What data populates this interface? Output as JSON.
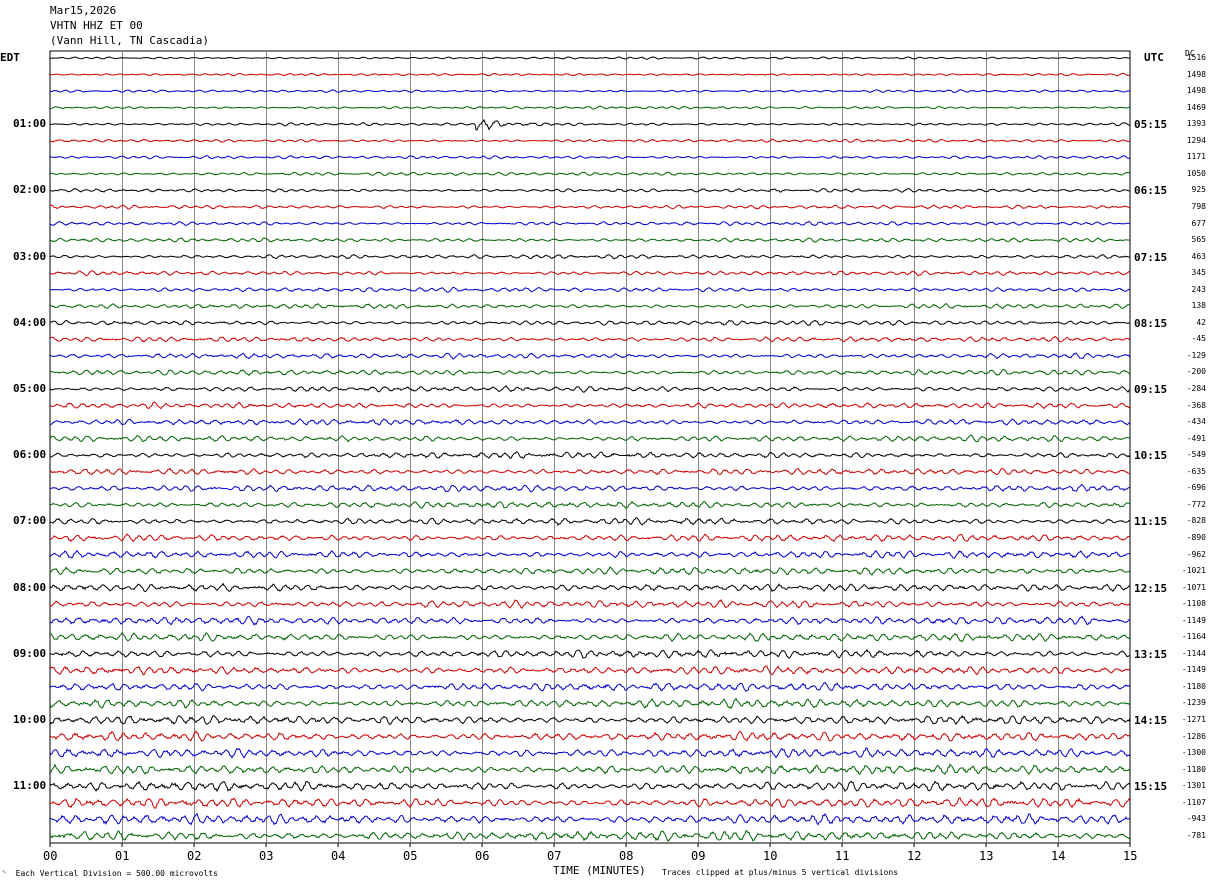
{
  "header": {
    "date": "Mar15,2026",
    "station": "VHTN HHZ ET 00",
    "location": "(Vann Hill, TN Cascadia)"
  },
  "chart_data": {
    "type": "line",
    "title": "",
    "xlabel": "TIME (MINUTES)",
    "x_ticks": [
      "00",
      "01",
      "02",
      "03",
      "04",
      "05",
      "06",
      "07",
      "08",
      "09",
      "10",
      "11",
      "12",
      "13",
      "14",
      "15"
    ],
    "xlim": [
      0,
      15
    ],
    "grid": true,
    "left_axis_label": "EDT",
    "right_axis_label": "UTC",
    "dc_label": "DC",
    "left_hour_labels": [
      "01:00",
      "02:00",
      "03:00",
      "04:00",
      "05:00",
      "06:00",
      "07:00",
      "08:00",
      "09:00",
      "10:00",
      "11:00"
    ],
    "right_hour_labels": [
      "05:15",
      "06:15",
      "07:15",
      "08:15",
      "09:15",
      "10:15",
      "11:15",
      "12:15",
      "13:15",
      "14:15",
      "15:15"
    ],
    "trace_colors": [
      "#000000",
      "#cc0000",
      "#0000cc",
      "#006400"
    ],
    "dc_offsets": [
      1516,
      1498,
      1498,
      1469,
      1393,
      1294,
      1171,
      1050,
      925,
      798,
      677,
      565,
      463,
      345,
      243,
      138,
      42,
      -45,
      -129,
      -200,
      -284,
      -368,
      -434,
      -491,
      -549,
      -635,
      -696,
      -772,
      -828,
      -890,
      -962,
      -1021,
      -1071,
      -1108,
      -1149,
      -1164,
      -1144,
      -1149,
      -1180,
      -1239,
      -1271,
      -1286,
      -1300,
      -1180,
      -1301,
      -1107,
      -943,
      -781
    ],
    "event": {
      "trace_index": 4,
      "start_minute": 5.9,
      "end_minute": 7.0
    },
    "footer_left": "Each Vertical Division =  500.00 microvolts",
    "footer_right": "Traces clipped at plus/minus 5 vertical divisions"
  }
}
